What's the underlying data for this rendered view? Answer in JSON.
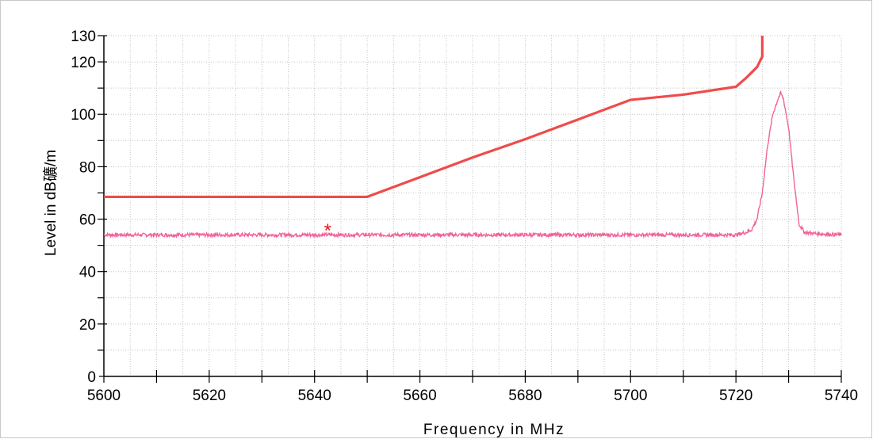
{
  "chart_data": {
    "type": "line",
    "title": "",
    "xlabel": "Frequency in MHz",
    "ylabel": "Level in dB礦/m",
    "xlim": [
      5600,
      5740
    ],
    "ylim": [
      0,
      130
    ],
    "xticks": [
      5600,
      5620,
      5640,
      5660,
      5680,
      5700,
      5720,
      5740
    ],
    "xtick_labels": [
      "5600",
      "5620",
      "5640",
      "5660",
      "5680",
      "5700",
      "5720",
      "5740"
    ],
    "yticks": [
      0,
      20,
      40,
      60,
      80,
      100,
      120,
      130
    ],
    "ytick_labels": [
      "0",
      "20",
      "40",
      "60",
      "80",
      "100",
      "120",
      "130"
    ],
    "grid": true,
    "legend": "none",
    "series": [
      {
        "color": "#ef4b4b",
        "x": [
          5600,
          5650,
          5660,
          5670,
          5680,
          5690,
          5700,
          5710,
          5715,
          5720,
          5722,
          5723,
          5724,
          5725,
          5725
        ],
        "y": [
          68.5,
          68.5,
          76,
          83.5,
          90.5,
          98,
          105.5,
          107.5,
          109,
          110.5,
          114,
          116,
          118,
          122,
          130
        ]
      },
      {
        "color": "#f0649a",
        "noise": 0.7,
        "x": [
          5600,
          5610,
          5620,
          5630,
          5640,
          5650,
          5660,
          5670,
          5680,
          5690,
          5700,
          5710,
          5715,
          5720,
          5722,
          5723,
          5724,
          5725,
          5726,
          5727,
          5728,
          5728.5,
          5729,
          5730,
          5731,
          5732,
          5733,
          5735,
          5740
        ],
        "y": [
          54,
          54,
          54,
          54,
          54,
          54,
          54,
          54,
          54,
          54,
          54,
          54,
          54,
          54,
          55,
          56,
          60,
          70,
          88,
          100,
          106,
          108,
          106,
          95,
          75,
          58,
          55,
          54.5,
          54
        ]
      }
    ],
    "markers": [
      {
        "x": 5642.5,
        "y": 56,
        "symbol": "*",
        "color": "#e8101a"
      }
    ]
  }
}
